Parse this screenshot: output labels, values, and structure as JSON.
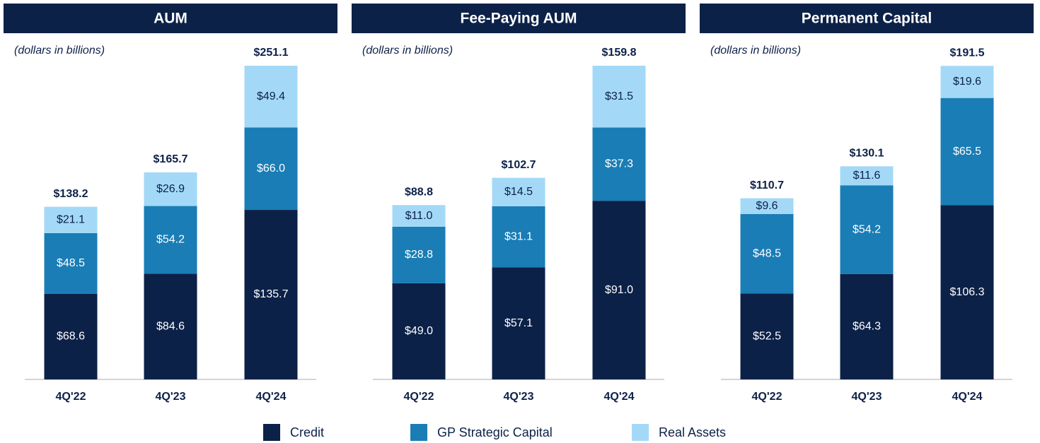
{
  "legend": {
    "entries": [
      {
        "name": "Credit",
        "color": "#0c2148"
      },
      {
        "name": "GP Strategic Capital",
        "color": "#1a7db5"
      },
      {
        "name": "Real Assets",
        "color": "#a3d9f7"
      }
    ]
  },
  "chart_data": [
    {
      "type": "stacked_bar",
      "title": "AUM",
      "subtitle": "(dollars in billions)",
      "categories": [
        "4Q'22",
        "4Q'23",
        "4Q'24"
      ],
      "series": [
        {
          "values": [
            68.6,
            84.6,
            135.7
          ],
          "value_labels": [
            "$68.6",
            "$84.6",
            "$135.7"
          ]
        },
        {
          "values": [
            48.5,
            54.2,
            66.0
          ],
          "value_labels": [
            "$48.5",
            "$54.2",
            "$66.0"
          ]
        },
        {
          "values": [
            21.1,
            26.9,
            49.4
          ],
          "value_labels": [
            "$21.1",
            "$26.9",
            "$49.4"
          ]
        }
      ],
      "totals": [
        138.2,
        165.7,
        251.1
      ],
      "total_labels": [
        "$138.2",
        "$165.7",
        "$251.1"
      ]
    },
    {
      "type": "stacked_bar",
      "title": "Fee-Paying AUM",
      "subtitle": "(dollars in billions)",
      "categories": [
        "4Q'22",
        "4Q'23",
        "4Q'24"
      ],
      "series": [
        {
          "values": [
            49.0,
            57.1,
            91.0
          ],
          "value_labels": [
            "$49.0",
            "$57.1",
            "$91.0"
          ]
        },
        {
          "values": [
            28.8,
            31.1,
            37.3
          ],
          "value_labels": [
            "$28.8",
            "$31.1",
            "$37.3"
          ]
        },
        {
          "values": [
            11.0,
            14.5,
            31.5
          ],
          "value_labels": [
            "$11.0",
            "$14.5",
            "$31.5"
          ]
        }
      ],
      "totals": [
        88.8,
        102.7,
        159.8
      ],
      "total_labels": [
        "$88.8",
        "$102.7",
        "$159.8"
      ]
    },
    {
      "type": "stacked_bar",
      "title": "Permanent Capital",
      "subtitle": "(dollars in billions)",
      "categories": [
        "4Q'22",
        "4Q'23",
        "4Q'24"
      ],
      "series": [
        {
          "values": [
            52.5,
            64.3,
            106.3
          ],
          "value_labels": [
            "$52.5",
            "$64.3",
            "$106.3"
          ]
        },
        {
          "values": [
            48.5,
            54.2,
            65.5
          ],
          "value_labels": [
            "$48.5",
            "$54.2",
            "$65.5"
          ]
        },
        {
          "values": [
            9.6,
            11.6,
            19.6
          ],
          "value_labels": [
            "$9.6",
            "$11.6",
            "$19.6"
          ]
        }
      ],
      "totals": [
        110.7,
        130.1,
        191.5
      ],
      "total_labels": [
        "$110.7",
        "$130.1",
        "$191.5"
      ]
    }
  ]
}
